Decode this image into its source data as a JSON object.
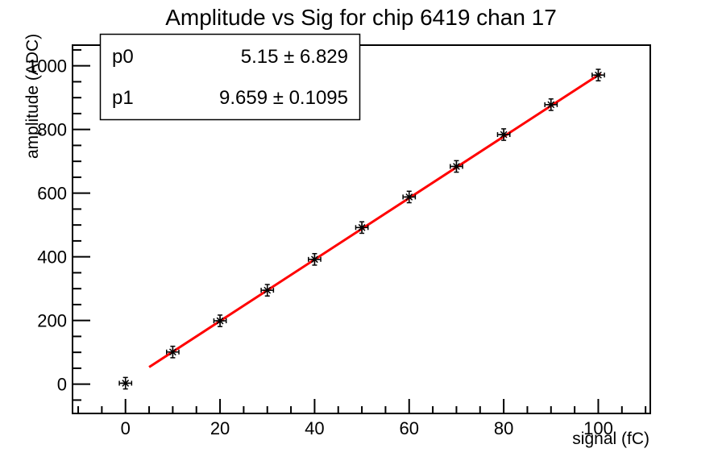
{
  "title": "Amplitude vs Sig for chip 6419 chan 17",
  "stats": {
    "rows": [
      {
        "name": "p0",
        "value": "5.15 ± 6.829"
      },
      {
        "name": "p1",
        "value": "9.659 ± 0.1095"
      }
    ]
  },
  "chart_data": {
    "type": "scatter",
    "title": "Amplitude vs Sig for chip 6419 chan 17",
    "xlabel": "signal (fC)",
    "ylabel": "amplitude (ADC)",
    "x": [
      0,
      10,
      20,
      30,
      40,
      50,
      60,
      70,
      80,
      90,
      100
    ],
    "y": [
      3,
      101,
      199,
      295,
      392,
      492,
      588,
      684,
      784,
      878,
      971
    ],
    "x_err": 1.3,
    "y_err": 18,
    "xlim": [
      -11.2,
      111.0
    ],
    "ylim": [
      -92,
      1065
    ],
    "x_major_ticks": [
      0,
      20,
      40,
      60,
      80,
      100
    ],
    "x_minor_step": 5,
    "y_major_ticks": [
      0,
      200,
      400,
      600,
      800,
      1000
    ],
    "y_minor_step": 50,
    "grid": false,
    "legend_position": "none",
    "marker": "asterisk",
    "colors": {
      "background": "#ffffff",
      "axis": "#000000",
      "marker": "#000000",
      "fit_line": "#ff0000"
    },
    "fit": {
      "p0": 5.15,
      "p0_err": 6.829,
      "p1": 9.659,
      "p1_err": 0.1095,
      "range": [
        5.0,
        100.5
      ]
    }
  }
}
